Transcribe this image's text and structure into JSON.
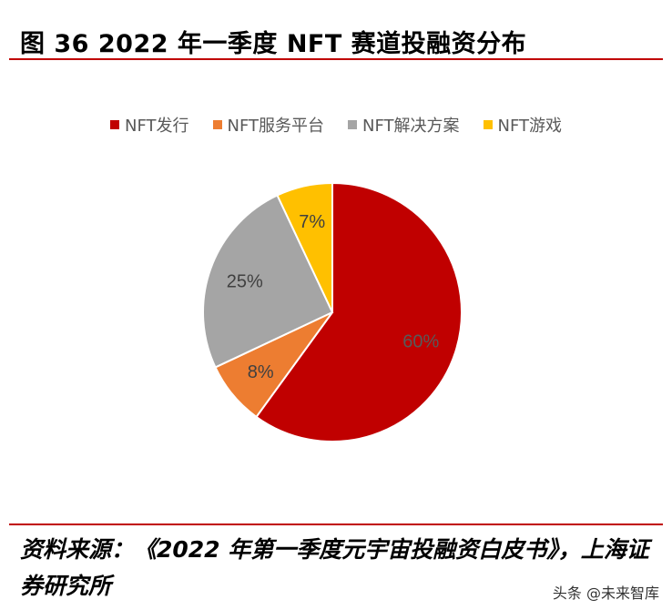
{
  "title": "图 36 2022 年一季度 NFT 赛道投融资分布",
  "source": "资料来源：《2022 年第一季度元宇宙投融资白皮书》，上海证券研究所",
  "watermark": "头条 @未来智库",
  "chart_data": {
    "type": "pie",
    "legend_position": "top",
    "series": [
      {
        "name": "NFT发行",
        "value": 60,
        "label": "60%",
        "color": "#c00000"
      },
      {
        "name": "NFT服务平台",
        "value": 8,
        "label": "8%",
        "color": "#ed7d31"
      },
      {
        "name": "NFT解决方案",
        "value": 25,
        "label": "25%",
        "color": "#a5a5a5"
      },
      {
        "name": "NFT游戏",
        "value": 7,
        "label": "7%",
        "color": "#ffc000"
      }
    ]
  }
}
